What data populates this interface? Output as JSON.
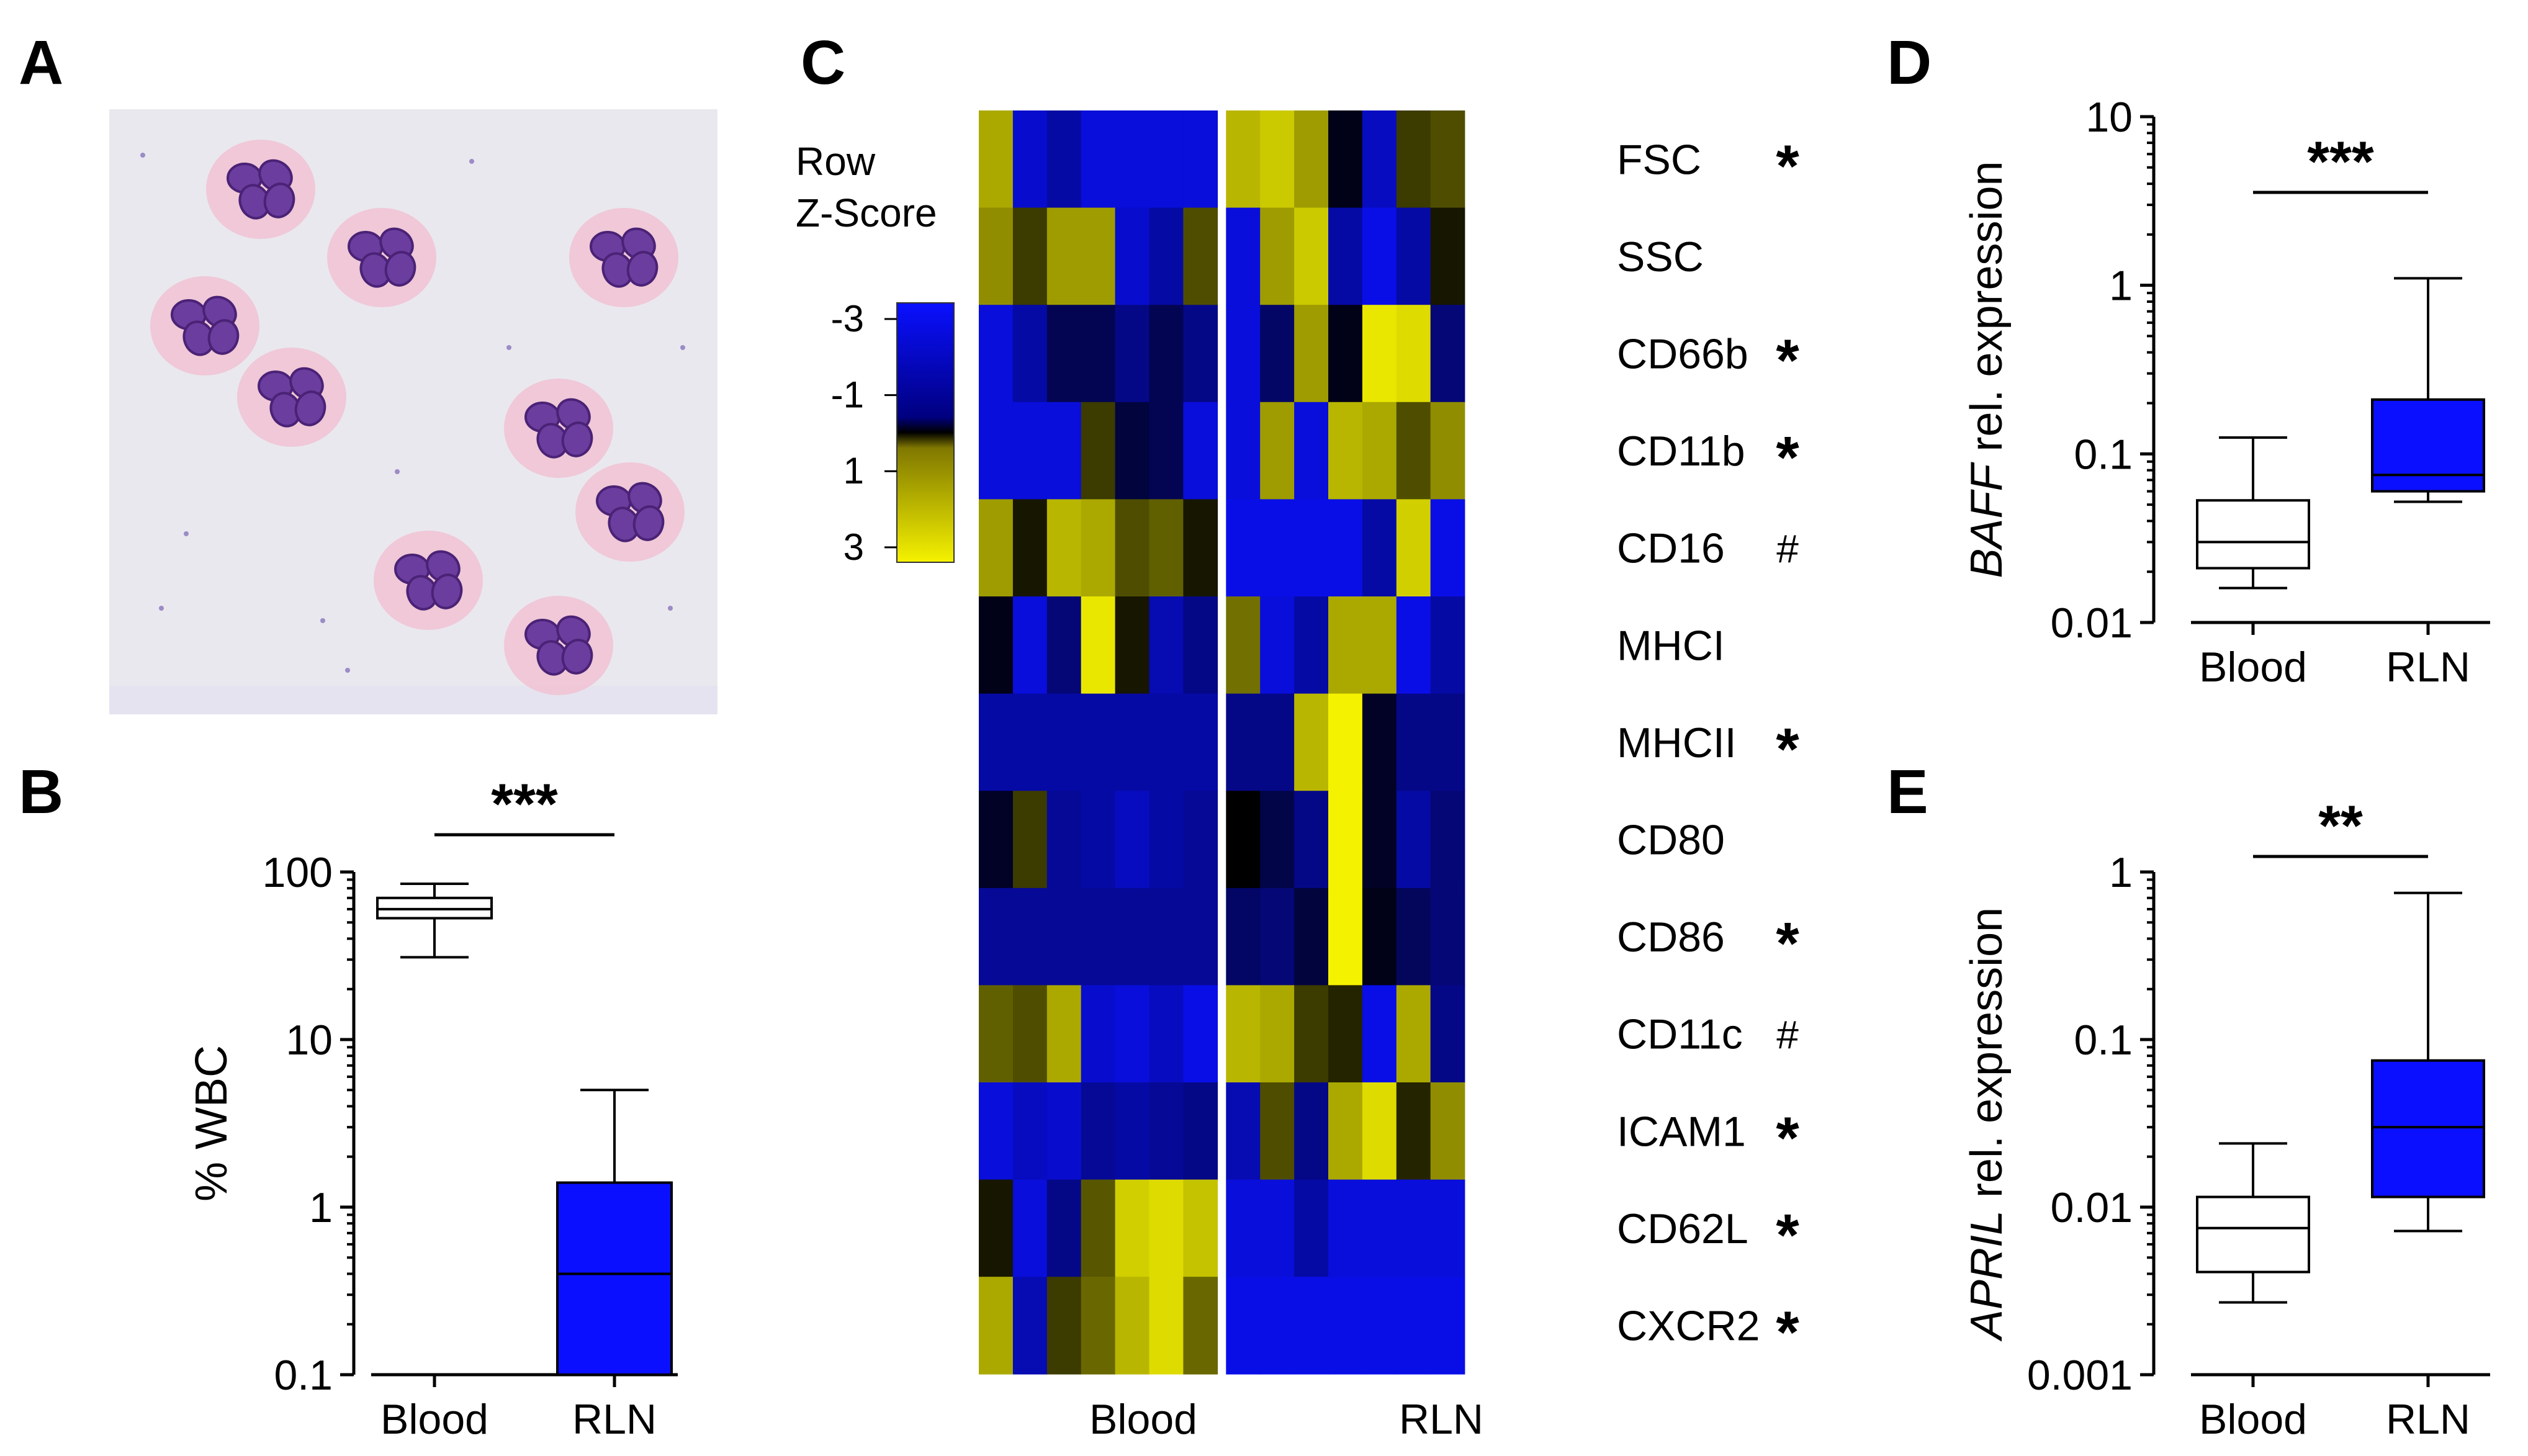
{
  "panels": {
    "A": {
      "letter": "A"
    },
    "B": {
      "letter": "B"
    },
    "C": {
      "letter": "C"
    },
    "D": {
      "letter": "D"
    },
    "E": {
      "letter": "E"
    }
  },
  "colors": {
    "rln_box": "#0a10ff",
    "blood_box": "#ffffff",
    "heat_low": "#0a10ff",
    "heat_mid": "#000000",
    "heat_high": "#f5f200",
    "micrograph_bg": "#e9e8ee",
    "nucleus": "#6b3d9e",
    "cytoplasm": "#f1c2d2"
  },
  "heatmap": {
    "legend_title_line1": "Row",
    "legend_title_line2": "Z-Score",
    "legend_ticks": [
      "-3",
      "-1",
      "1",
      "3"
    ],
    "legend_values": [
      -3,
      -1,
      1,
      3
    ],
    "group_labels": [
      "Blood",
      "RLN"
    ],
    "rows": [
      {
        "label": "FSC",
        "mark": "*",
        "values": [
          1.8,
          -2.2,
          -1.6,
          -2.4,
          -2.4,
          -2.4,
          -2.4,
          2.0,
          2.3,
          1.6,
          -0.1,
          -2.0,
          0.4,
          0.6
        ]
      },
      {
        "label": "SSC",
        "mark": "",
        "values": [
          1.4,
          0.4,
          1.6,
          1.6,
          -2.2,
          -1.6,
          0.6,
          -2.4,
          1.6,
          2.3,
          -1.6,
          -2.6,
          -1.6,
          0.1
        ]
      },
      {
        "label": "CD66b",
        "mark": "*",
        "values": [
          -2.4,
          -1.6,
          -0.6,
          -0.6,
          -1.2,
          -0.6,
          -1.2,
          -2.4,
          -0.8,
          1.6,
          -0.1,
          2.8,
          2.6,
          -1.0
        ]
      },
      {
        "label": "CD11b",
        "mark": "*",
        "values": [
          -2.4,
          -2.4,
          -2.4,
          0.4,
          -0.4,
          -0.6,
          -2.4,
          -2.4,
          1.6,
          -2.4,
          2.0,
          1.8,
          0.6,
          1.4
        ]
      },
      {
        "label": "CD16",
        "mark": "#",
        "values": [
          1.6,
          0.1,
          2.0,
          1.8,
          0.6,
          0.8,
          0.1,
          -2.6,
          -2.6,
          -2.6,
          -2.6,
          -1.6,
          2.4,
          -2.6
        ]
      },
      {
        "label": "MHCI",
        "mark": "",
        "values": [
          -0.1,
          -2.4,
          -1.0,
          2.8,
          0.1,
          -1.8,
          -1.2,
          1.0,
          -2.4,
          -1.6,
          1.8,
          1.8,
          -2.6,
          -1.6
        ]
      },
      {
        "label": "MHCII",
        "mark": "*",
        "values": [
          -1.6,
          -1.6,
          -1.6,
          -1.6,
          -1.6,
          -1.6,
          -1.6,
          -1.2,
          -1.2,
          2.0,
          3.0,
          -0.2,
          -1.2,
          -1.2
        ]
      },
      {
        "label": "CD80",
        "mark": "",
        "values": [
          -0.2,
          0.4,
          -1.4,
          -1.6,
          -2.0,
          -1.6,
          -1.4,
          0.0,
          -0.5,
          -1.2,
          3.0,
          -0.2,
          -1.6,
          -1.0
        ]
      },
      {
        "label": "CD86",
        "mark": "*",
        "values": [
          -1.4,
          -1.4,
          -1.4,
          -1.4,
          -1.4,
          -1.4,
          -1.4,
          -0.8,
          -1.0,
          -0.4,
          3.0,
          -0.1,
          -0.7,
          -1.0
        ]
      },
      {
        "label": "CD11c",
        "mark": "#",
        "values": [
          0.8,
          0.6,
          1.8,
          -2.2,
          -2.4,
          -2.0,
          -2.6,
          2.0,
          1.8,
          0.4,
          0.2,
          -2.6,
          1.8,
          -1.2
        ]
      },
      {
        "label": "ICAM1",
        "mark": "*",
        "values": [
          -2.4,
          -2.0,
          -2.2,
          -1.4,
          -1.6,
          -1.4,
          -1.2,
          -1.8,
          0.6,
          -1.2,
          1.8,
          2.6,
          0.2,
          1.4
        ]
      },
      {
        "label": "CD62L",
        "mark": "*",
        "values": [
          0.1,
          -2.4,
          -1.2,
          0.7,
          2.4,
          2.6,
          2.2,
          -2.4,
          -2.4,
          -1.6,
          -2.4,
          -2.4,
          -2.4,
          -2.4
        ]
      },
      {
        "label": "CXCR2",
        "mark": "*",
        "values": [
          1.8,
          -1.8,
          0.4,
          0.9,
          2.0,
          2.6,
          0.9,
          -2.6,
          -2.6,
          -2.6,
          -2.6,
          -2.6,
          -2.6,
          -2.6
        ]
      }
    ]
  },
  "chart_data": [
    {
      "panel": "B",
      "type": "box",
      "scale": "log",
      "ylabel": "% WBC",
      "xlabel": "",
      "ylim": [
        0.1,
        100
      ],
      "ytick_labels": [
        "0.1",
        "1",
        "10",
        "100"
      ],
      "ytick_values": [
        0.1,
        1,
        10,
        100
      ],
      "categories": [
        "Blood",
        "RLN"
      ],
      "boxes": [
        {
          "name": "Blood",
          "whisker_low": 31,
          "q1": 53,
          "median": 60,
          "q3": 70,
          "whisker_high": 85
        },
        {
          "name": "RLN",
          "whisker_low": 0.1,
          "q1": 0.1,
          "median": 0.4,
          "q3": 1.4,
          "whisker_high": 5
        }
      ],
      "significance": "***"
    },
    {
      "panel": "D",
      "type": "box",
      "scale": "log",
      "ylabel_gene": "BAFF",
      "ylabel_rest": " rel. expression",
      "xlabel": "",
      "ylim": [
        0.01,
        10
      ],
      "ytick_labels": [
        "0.01",
        "0.1",
        "1",
        "10"
      ],
      "ytick_values": [
        0.01,
        0.1,
        1,
        10
      ],
      "categories": [
        "Blood",
        "RLN"
      ],
      "boxes": [
        {
          "name": "Blood",
          "whisker_low": 0.016,
          "q1": 0.021,
          "median": 0.03,
          "q3": 0.053,
          "whisker_high": 0.125
        },
        {
          "name": "RLN",
          "whisker_low": 0.052,
          "q1": 0.06,
          "median": 0.075,
          "q3": 0.21,
          "whisker_high": 1.1
        }
      ],
      "significance": "***"
    },
    {
      "panel": "E",
      "type": "box",
      "scale": "log",
      "ylabel_gene": "APRIL",
      "ylabel_rest": " rel. expression",
      "xlabel": "",
      "ylim": [
        0.001,
        1
      ],
      "ytick_labels": [
        "0.001",
        "0.01",
        "0.1",
        "1"
      ],
      "ytick_values": [
        0.001,
        0.01,
        0.1,
        1
      ],
      "categories": [
        "Blood",
        "RLN"
      ],
      "boxes": [
        {
          "name": "Blood",
          "whisker_low": 0.0027,
          "q1": 0.0041,
          "median": 0.0075,
          "q3": 0.0115,
          "whisker_high": 0.024
        },
        {
          "name": "RLN",
          "whisker_low": 0.0072,
          "q1": 0.0115,
          "median": 0.03,
          "q3": 0.075,
          "whisker_high": 0.75
        }
      ],
      "significance": "**"
    }
  ]
}
